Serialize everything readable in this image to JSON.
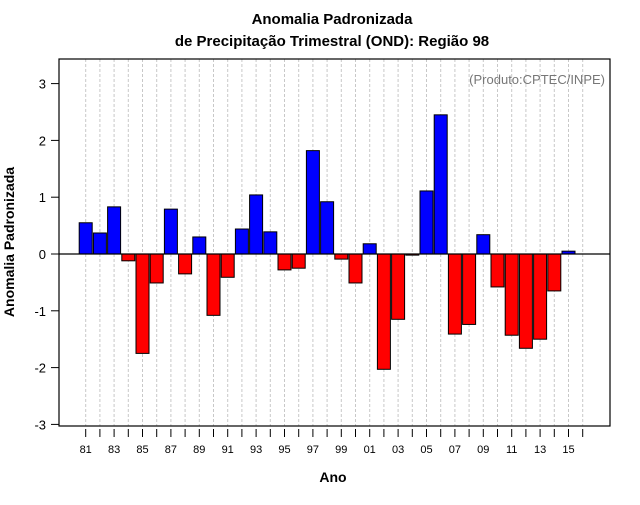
{
  "chart_data": {
    "type": "bar",
    "title": [
      "Anomalia Padronizada",
      "de Precipitação Trimestral (OND): Região 98"
    ],
    "annotation": "(Produto:CPTEC/INPE)",
    "xlabel": "Ano",
    "ylabel": "Anomalia Padronizada",
    "ylim": [
      -3,
      3
    ],
    "yticks": [
      -3,
      -2,
      -1,
      0,
      1,
      2,
      3
    ],
    "x_tick_years": [
      1981,
      1982,
      1983,
      1984,
      1985,
      1986,
      1987,
      1988,
      1989,
      1990,
      1991,
      1992,
      1993,
      1994,
      1995,
      1996,
      1997,
      1998,
      1999,
      2000,
      2001,
      2002,
      2003,
      2004,
      2005,
      2006,
      2007,
      2008,
      2009,
      2010,
      2011,
      2012,
      2013,
      2014,
      2015,
      2016
    ],
    "x_tick_labels": [
      "81",
      "83",
      "85",
      "87",
      "89",
      "91",
      "93",
      "95",
      "97",
      "99",
      "01",
      "03",
      "05",
      "07",
      "09",
      "11",
      "13",
      "15"
    ],
    "categories": [
      1981,
      1982,
      1983,
      1984,
      1985,
      1986,
      1987,
      1988,
      1989,
      1990,
      1991,
      1992,
      1993,
      1994,
      1995,
      1996,
      1997,
      1998,
      1999,
      2000,
      2001,
      2002,
      2003,
      2004,
      2005,
      2006,
      2007,
      2008,
      2009,
      2010,
      2011,
      2012,
      2013,
      2014,
      2015
    ],
    "values": [
      0.55,
      0.37,
      0.83,
      -0.12,
      -1.75,
      -0.51,
      0.79,
      -0.35,
      0.3,
      -1.08,
      -0.41,
      0.44,
      1.04,
      0.39,
      -0.28,
      -0.25,
      1.82,
      0.92,
      -0.09,
      -0.51,
      0.18,
      -2.03,
      -1.15,
      -0.02,
      1.11,
      2.45,
      -1.41,
      -1.24,
      0.34,
      -0.58,
      -1.43,
      -1.66,
      -1.5,
      -0.65,
      0.05
    ],
    "grid": "vertical dashed",
    "colors": {
      "positive": "#0000ff",
      "negative": "#ff0000",
      "grid": "#c8c8c8"
    }
  }
}
